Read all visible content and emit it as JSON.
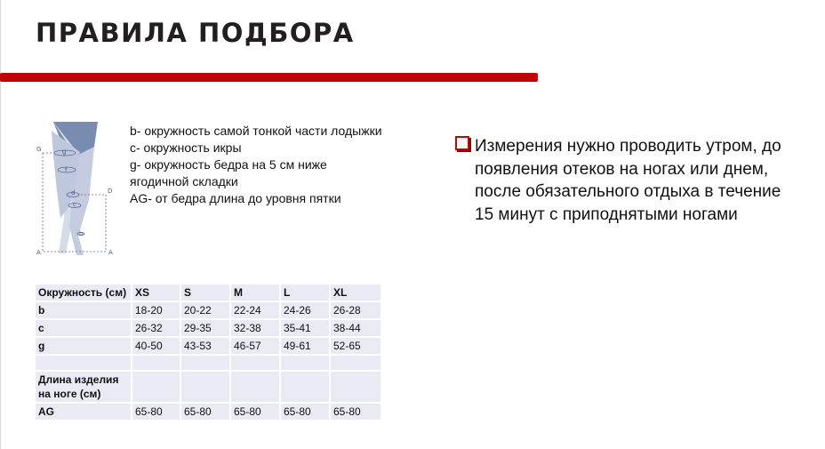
{
  "title": "ПРАВИЛА ПОДБОРА",
  "figure": {
    "labels": [
      "G",
      "g",
      "f",
      "d",
      "D",
      "c",
      "b",
      "A",
      "A"
    ]
  },
  "legend": [
    "b- окружность самой тонкой части лодыжки",
    "c- окружность икры",
    "g- окружность бедра на 5 см ниже ягодичной складки",
    "AG- от бедра длина до уровня пятки"
  ],
  "note": "Измерения нужно проводить утром, до появления отеков на ногах или днем, после обязательного отдыха в течение 15 минут с приподнятыми ногами",
  "colors": {
    "accent": "#c00000",
    "table_bg": "#e9eaf3"
  },
  "table": {
    "header": [
      "Окружность (см)",
      "XS",
      "S",
      "M",
      "L",
      "XL"
    ],
    "rows": [
      [
        "b",
        "18-20",
        "20-22",
        "22-24",
        "24-26",
        "26-28"
      ],
      [
        "c",
        "26-32",
        "29-35",
        "32-38",
        "35-41",
        "38-44"
      ],
      [
        "g",
        "40-50",
        "43-53",
        "46-57",
        "49-61",
        "52-65"
      ],
      [
        "",
        "",
        "",
        "",
        "",
        ""
      ],
      [
        "Длина изделия на ноге (см)",
        "",
        "",
        "",
        "",
        ""
      ],
      [
        "AG",
        "65-80",
        "65-80",
        "65-80",
        "65-80",
        "65-80"
      ]
    ]
  }
}
